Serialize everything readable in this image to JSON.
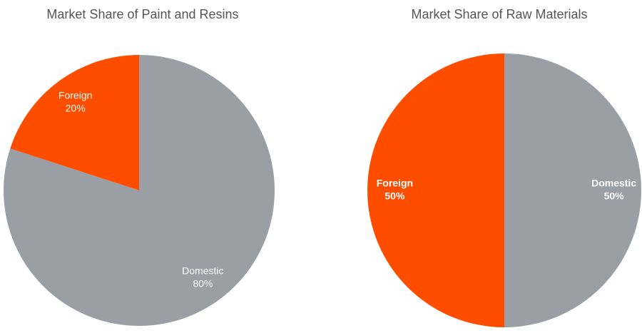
{
  "chart_data": [
    {
      "type": "pie",
      "title": "Market Share of Paint and Resins",
      "categories": [
        "Domestic",
        "Foreign"
      ],
      "values": [
        80,
        20
      ],
      "value_labels": [
        "80%",
        "20%"
      ],
      "colors": [
        "#9a9ea5",
        "#ff4d00"
      ]
    },
    {
      "type": "pie",
      "title": "Market Share of Raw Materials",
      "categories": [
        "Domestic",
        "Foreign"
      ],
      "values": [
        50,
        50
      ],
      "value_labels": [
        "50%",
        "50%"
      ],
      "colors": [
        "#9a9ea5",
        "#ff4d00"
      ]
    }
  ]
}
